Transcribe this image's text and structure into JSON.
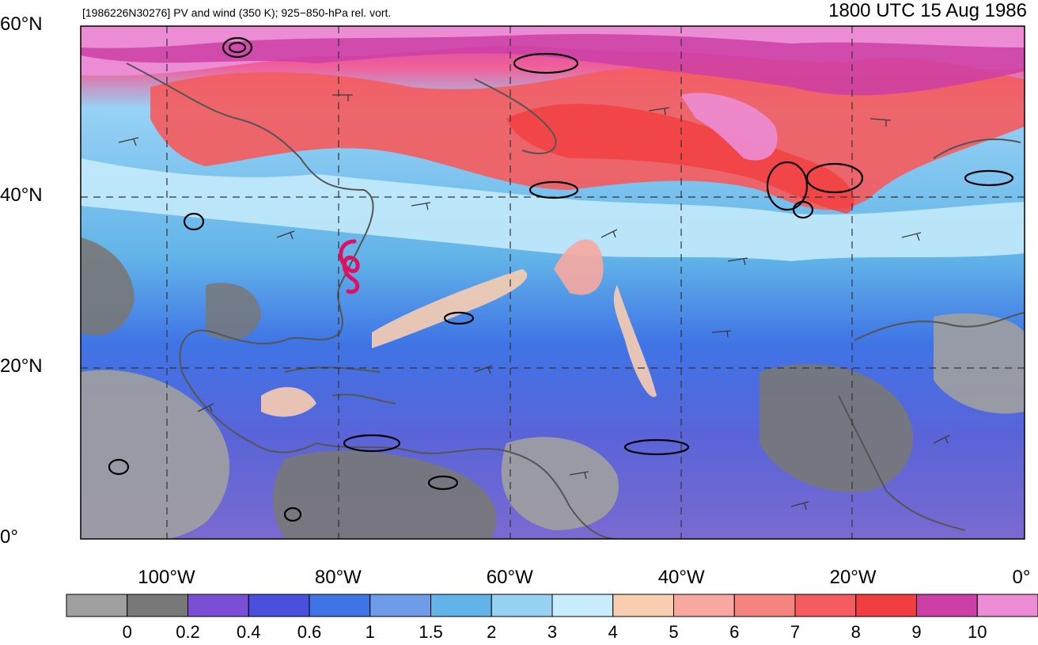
{
  "title_left": "[1986226N30276] PV and wind (350 K); 925−850-hPa rel. vort.",
  "title_right": "1800 UTC 15 Aug 1986",
  "lat_labels": [
    {
      "text": "60°N",
      "lat": 60
    },
    {
      "text": "40°N",
      "lat": 40
    },
    {
      "text": "20°N",
      "lat": 20
    },
    {
      "text": "0°",
      "lat": 0
    }
  ],
  "lon_labels": [
    {
      "text": "100°W",
      "lon": -100
    },
    {
      "text": "80°W",
      "lon": -80
    },
    {
      "text": "60°W",
      "lon": -60
    },
    {
      "text": "40°W",
      "lon": -40
    },
    {
      "text": "20°W",
      "lon": -20
    },
    {
      "text": "0°",
      "lon": 0
    }
  ],
  "map_extent": {
    "lon_min": -110,
    "lon_max": 0,
    "lat_min": 0,
    "lat_max": 60
  },
  "colorbar": {
    "colors": [
      "#a0a0a0",
      "#787878",
      "#7a4fd6",
      "#4a4fdc",
      "#3f74e6",
      "#6e9ce8",
      "#62b4e8",
      "#97d2f5",
      "#c8ecfc",
      "#f8cdb0",
      "#f8a8a0",
      "#f5837f",
      "#f45c60",
      "#f23d40",
      "#cc3fa6",
      "#ec8cd4"
    ],
    "tick_labels": [
      "0",
      "0.2",
      "0.4",
      "0.6",
      "1",
      "1.5",
      "2",
      "3",
      "4",
      "5",
      "6",
      "7",
      "8",
      "9",
      "10"
    ]
  },
  "storm_marker": {
    "lon": -78,
    "lat": 32,
    "color": "#e0105e"
  }
}
